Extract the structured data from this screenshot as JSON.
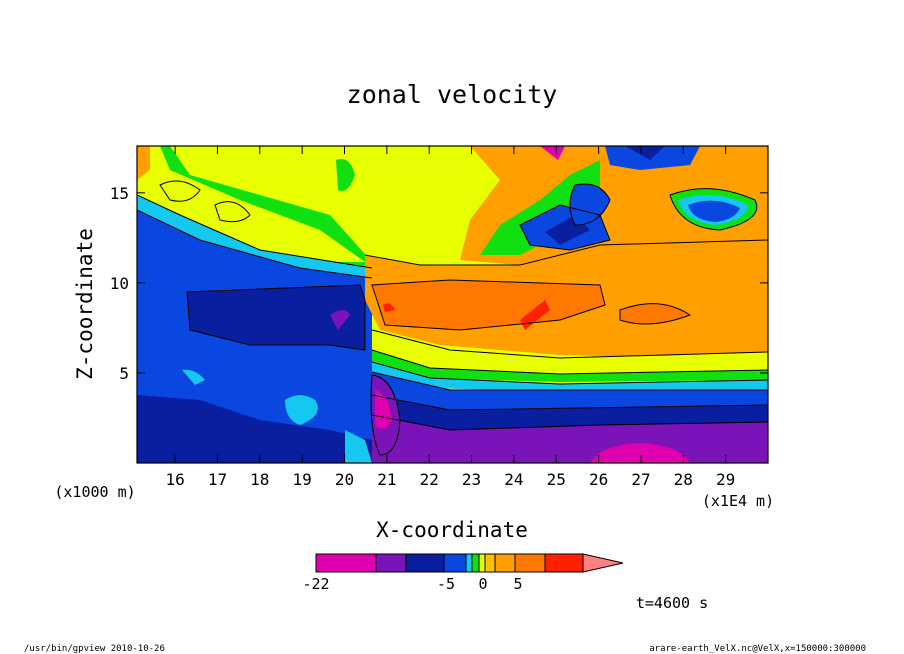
{
  "chart_data": {
    "type": "heatmap",
    "title": "zonal velocity",
    "xlabel": "X-coordinate",
    "ylabel": "Z-coordinate",
    "x_scale_note": "(x1E4 m)",
    "y_scale_note": "(x1000 m)",
    "xlim": [
      15.1,
      30.0
    ],
    "ylim": [
      0.0,
      17.6
    ],
    "x_ticks": [
      16,
      17,
      18,
      19,
      20,
      21,
      22,
      23,
      24,
      25,
      26,
      27,
      28,
      29
    ],
    "x_tick_labels": [
      "16",
      "17",
      "18",
      "19",
      "20",
      "21",
      "22",
      "23",
      "24",
      "25",
      "26",
      "27",
      "28",
      "29"
    ],
    "y_ticks": [
      5,
      10,
      15
    ],
    "y_tick_labels": [
      "5",
      "10",
      "15"
    ],
    "time_label": "t=4600 s",
    "colorbar": {
      "colors": [
        "#e000b0",
        "#7a14b8",
        "#0a1ea0",
        "#0a46e0",
        "#14c8f0",
        "#10e010",
        "#e8ff00",
        "#ffc000",
        "#ffa000",
        "#ff7800",
        "#ff2000",
        "#ff8080"
      ],
      "tick_labels": [
        "-22",
        "-5",
        "0",
        "5"
      ],
      "tick_values": [
        -22,
        -5,
        0,
        5
      ]
    }
  },
  "footer": {
    "left": "/usr/bin/gpview   2010-10-26",
    "right": "arare-earth_VelX.nc@VelX,x=150000:300000"
  }
}
